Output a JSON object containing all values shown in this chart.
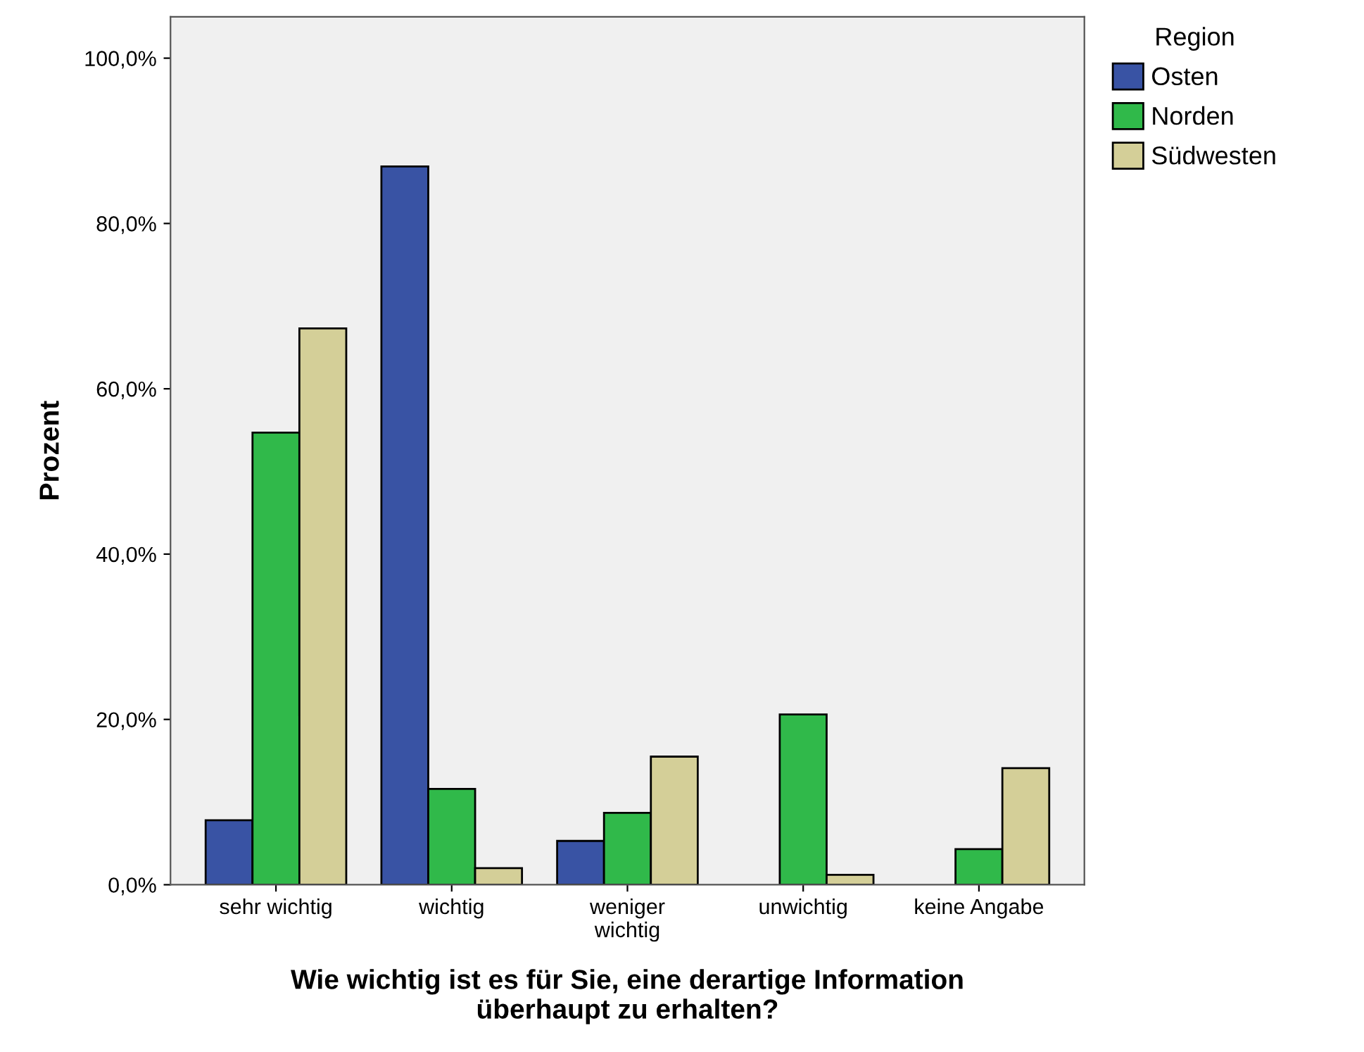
{
  "chart_data": {
    "type": "bar",
    "xlabel": "Wie wichtig ist es für Sie, eine derartige Information\nüberhaupt zu erhalten?",
    "ylabel": "Prozent",
    "legend_title": "Region",
    "legend": "top right",
    "grid": false,
    "categories": [
      "sehr wichtig",
      "wichtig",
      "weniger\nwichtig",
      "unwichtig",
      "keine Angabe"
    ],
    "series": [
      {
        "name": "Osten",
        "color": "#3953a4",
        "values": [
          7.8,
          86.9,
          5.3,
          null,
          null
        ]
      },
      {
        "name": "Norden",
        "color": "#30b94a",
        "values": [
          54.7,
          11.6,
          8.7,
          20.6,
          4.3
        ]
      },
      {
        "name": "Südwesten",
        "color": "#d4cf98",
        "values": [
          67.3,
          2.0,
          15.5,
          1.2,
          14.1
        ]
      }
    ],
    "ylim": [
      0,
      105
    ],
    "yticks": [
      {
        "value": 0,
        "label": "0,0%"
      },
      {
        "value": 20,
        "label": "20,0%"
      },
      {
        "value": 40,
        "label": "40,0%"
      },
      {
        "value": 60,
        "label": "60,0%"
      },
      {
        "value": 80,
        "label": "80,0%"
      },
      {
        "value": 100,
        "label": "100,0%"
      }
    ]
  }
}
